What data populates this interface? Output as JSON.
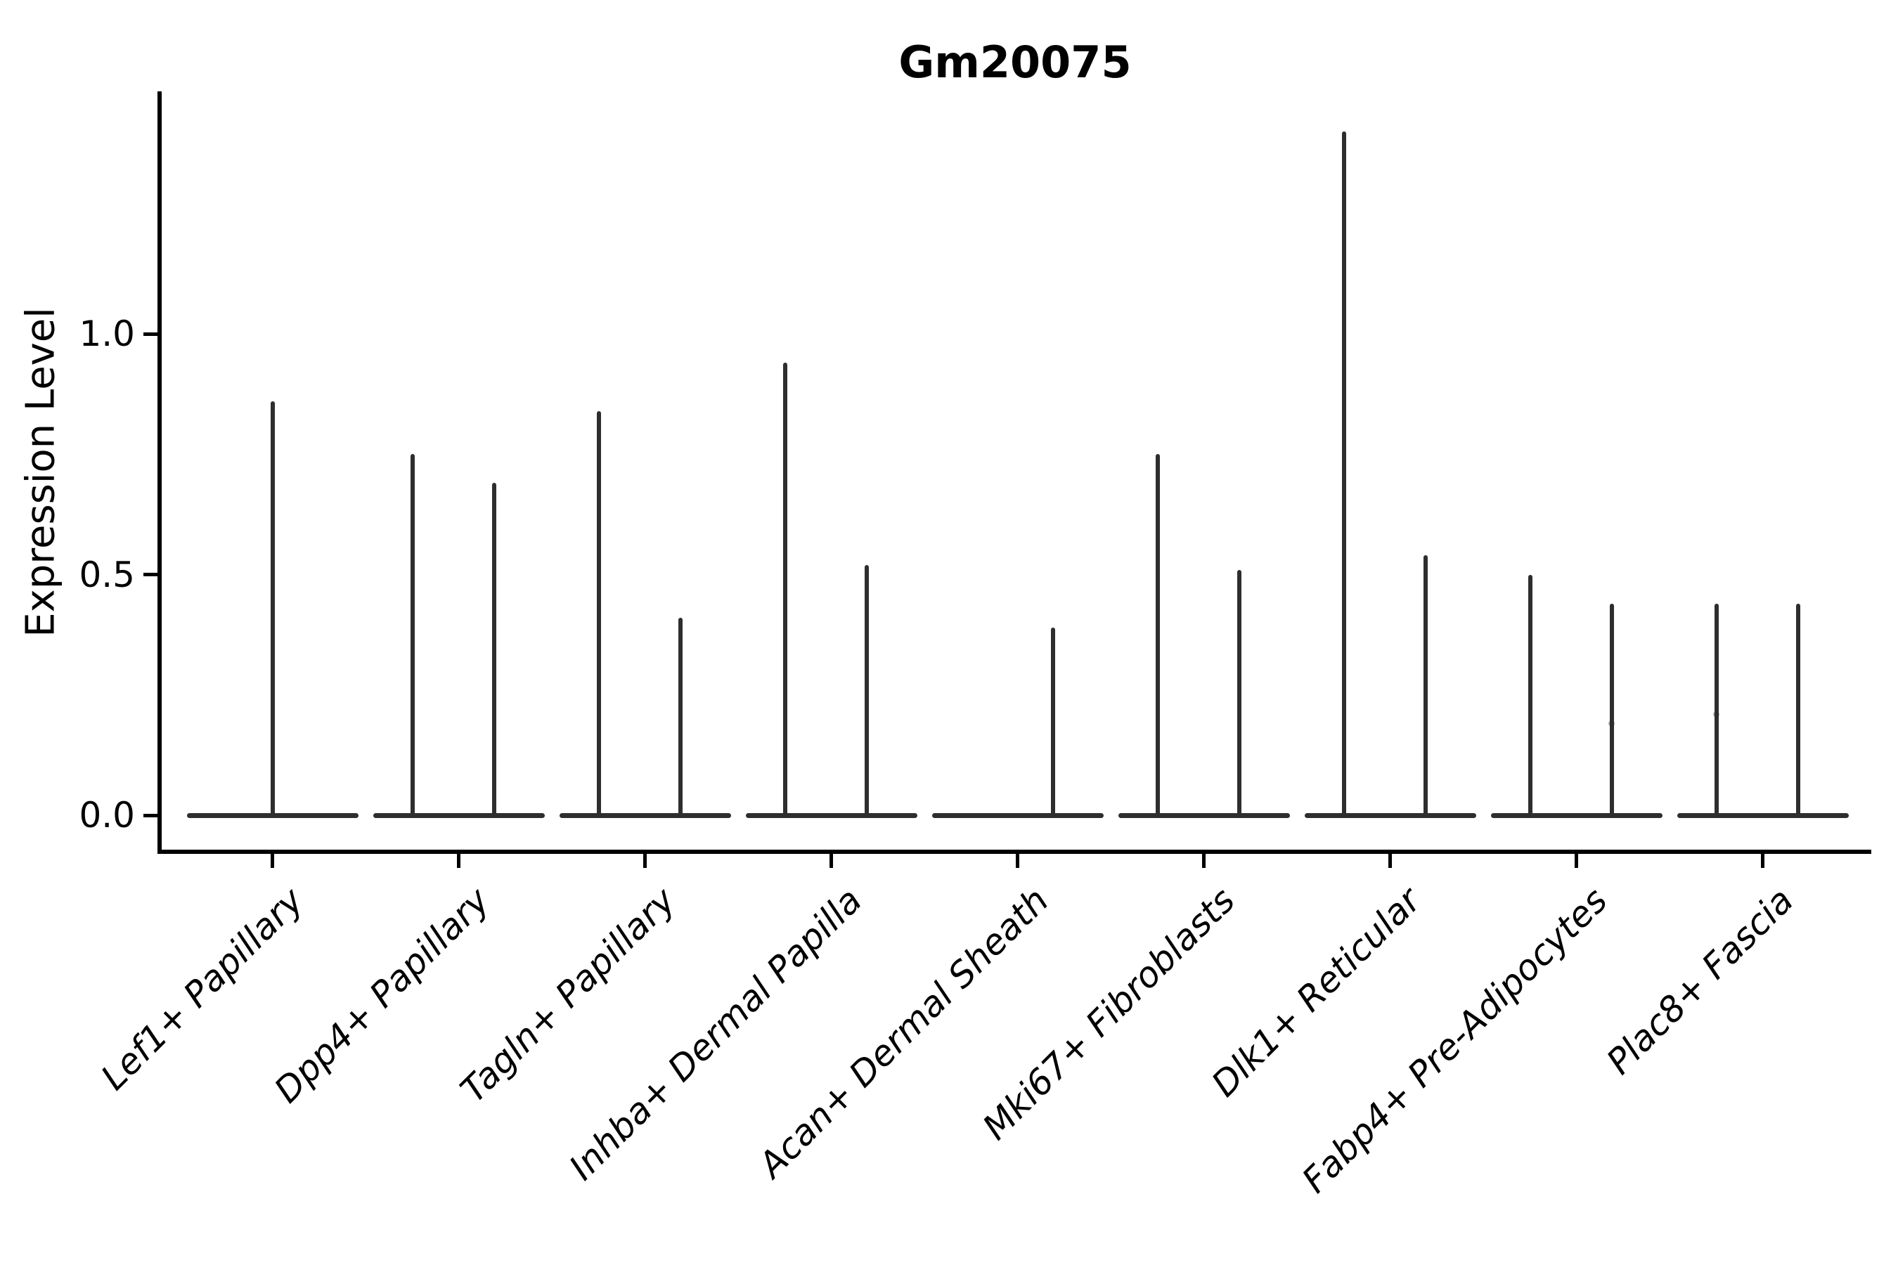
{
  "title": "Gm20075",
  "axes": {
    "ylabel": "Expression Level",
    "xlabel": ""
  },
  "colors": {
    "background": "#ffffff",
    "violin_line": "#2e2e2e",
    "spine": "#000000",
    "text": "#000000"
  },
  "chart_data": {
    "type": "violin",
    "title": "Gm20075",
    "xlabel": "",
    "ylabel": "Expression Level",
    "ylim": [
      -0.07,
      1.5
    ],
    "yticks": [
      0.0,
      0.5,
      1.0
    ],
    "grid": false,
    "legend": "none",
    "categories": [
      "Lef1+ Papillary",
      "Dpp4+ Papillary",
      "Tagln+ Papillary",
      "Inhba+ Dermal Papilla",
      "Acan+ Dermal Sheath",
      "Mki67+ Fibroblasts",
      "Dlk1+ Reticular",
      "Fabp4+ Pre-Adipocytes",
      "Plac8+ Fascia"
    ],
    "description": "Degenerate violins: each category shows a flat baseline at expression 0 with thin vertical spikes marking the maximum expression tail; most categories have a left/right spike pair, Lef1+ Papillary has a single centered spike and Acan+ Dermal Sheath only a right spike.",
    "violins": [
      {
        "category": "Lef1+ Papillary",
        "spikes": [
          {
            "slot": "center",
            "peak": 0.86
          }
        ]
      },
      {
        "category": "Dpp4+ Papillary",
        "spikes": [
          {
            "slot": "left",
            "peak": 0.75
          },
          {
            "slot": "right",
            "peak": 0.69
          }
        ]
      },
      {
        "category": "Tagln+ Papillary",
        "spikes": [
          {
            "slot": "left",
            "peak": 0.84
          },
          {
            "slot": "right",
            "peak": 0.41
          }
        ]
      },
      {
        "category": "Inhba+ Dermal Papilla",
        "spikes": [
          {
            "slot": "left",
            "peak": 0.94
          },
          {
            "slot": "right",
            "peak": 0.52
          }
        ]
      },
      {
        "category": "Acan+ Dermal Sheath",
        "spikes": [
          {
            "slot": "right",
            "peak": 0.39
          }
        ]
      },
      {
        "category": "Mki67+ Fibroblasts",
        "spikes": [
          {
            "slot": "left",
            "peak": 0.75
          },
          {
            "slot": "right",
            "peak": 0.51
          }
        ]
      },
      {
        "category": "Dlk1+ Reticular",
        "spikes": [
          {
            "slot": "left",
            "peak": 1.42
          },
          {
            "slot": "right",
            "peak": 0.54
          }
        ]
      },
      {
        "category": "Fabp4+ Pre-Adipocytes",
        "spikes": [
          {
            "slot": "left",
            "peak": 0.5
          },
          {
            "slot": "right",
            "peak": 0.44,
            "marker_at": 0.19
          }
        ]
      },
      {
        "category": "Plac8+ Fascia",
        "spikes": [
          {
            "slot": "left",
            "peak": 0.44,
            "marker_at": 0.21
          },
          {
            "slot": "right",
            "peak": 0.44
          }
        ]
      }
    ]
  }
}
